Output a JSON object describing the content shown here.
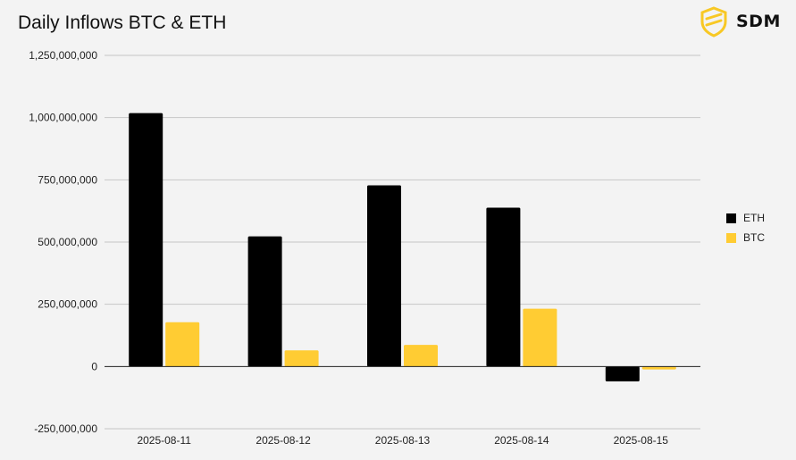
{
  "title": "Daily Inflows BTC & ETH",
  "logo": {
    "text": "SDM",
    "icon": "shield-icon",
    "color": "#f8c824"
  },
  "chart_data": {
    "type": "bar",
    "title": "Daily Inflows BTC & ETH",
    "xlabel": "",
    "ylabel": "",
    "categories": [
      "2025-08-11",
      "2025-08-12",
      "2025-08-13",
      "2025-08-14",
      "2025-08-15"
    ],
    "series": [
      {
        "name": "ETH",
        "color": "#000000",
        "values": [
          1018000000,
          523000000,
          728000000,
          638000000,
          -60000000
        ]
      },
      {
        "name": "BTC",
        "color": "#ffcc33",
        "values": [
          178000000,
          65000000,
          87000000,
          232000000,
          -12000000
        ]
      }
    ],
    "ylim": [
      -250000000,
      1250000000
    ],
    "yticks": [
      -250000000,
      0,
      250000000,
      500000000,
      750000000,
      1000000000,
      1250000000
    ],
    "ytick_labels": [
      "-250,000,000",
      "0",
      "250,000,000",
      "500,000,000",
      "750,000,000",
      "1,000,000,000",
      "1,250,000,000"
    ],
    "grid": true,
    "legend": "right"
  }
}
